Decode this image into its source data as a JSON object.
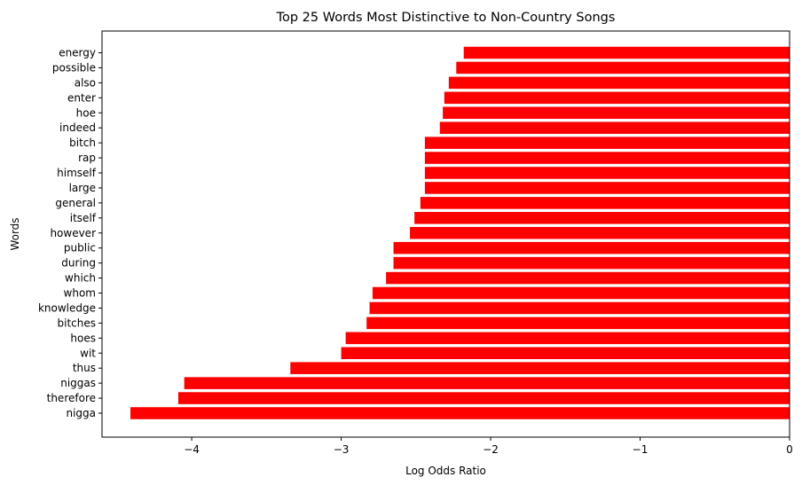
{
  "chart_data": {
    "type": "bar",
    "orientation": "horizontal",
    "title": "Top 25 Words Most Distinctive to Non-Country Songs",
    "xlabel": "Log Odds Ratio",
    "ylabel": "Words",
    "xlim": [
      -4.6,
      0
    ],
    "xticks": [
      -4,
      -3,
      -2,
      -1,
      0
    ],
    "xtick_labels": [
      "−4",
      "−3",
      "−2",
      "−1",
      "0"
    ],
    "bar_color": "#ff0000",
    "grid": false,
    "categories": [
      "energy",
      "possible",
      "also",
      "enter",
      "hoe",
      "indeed",
      "bitch",
      "rap",
      "himself",
      "large",
      "general",
      "itself",
      "however",
      "public",
      "during",
      "which",
      "whom",
      "knowledge",
      "bitches",
      "hoes",
      "wit",
      "thus",
      "niggas",
      "therefore",
      "nigga"
    ],
    "values": [
      -2.18,
      -2.23,
      -2.28,
      -2.31,
      -2.32,
      -2.34,
      -2.44,
      -2.44,
      -2.44,
      -2.44,
      -2.47,
      -2.51,
      -2.54,
      -2.65,
      -2.65,
      -2.7,
      -2.79,
      -2.81,
      -2.83,
      -2.97,
      -3.0,
      -3.34,
      -4.05,
      -4.09,
      -4.41
    ]
  }
}
